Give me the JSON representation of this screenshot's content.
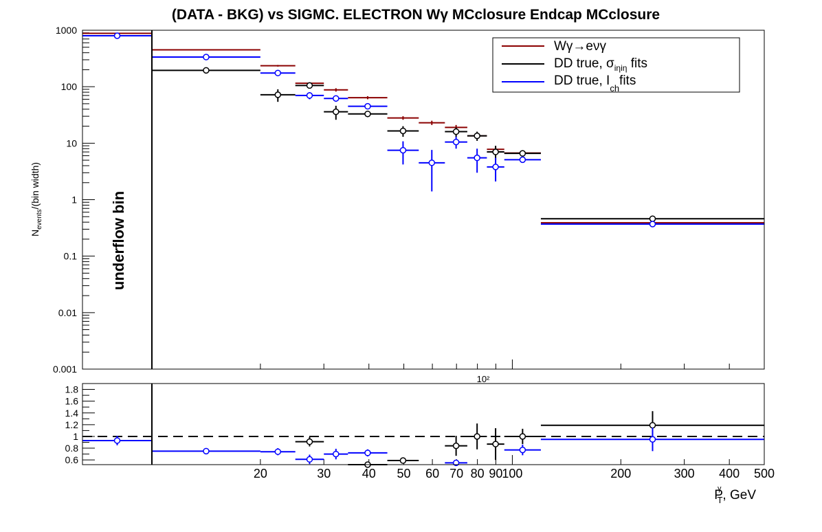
{
  "chart_data": {
    "type": "scatter",
    "title": "(DATA - BKG) vs SIGMC. ELECTRON Wγ MCclosure Endcap MCclosure",
    "upper_panel": {
      "ylabel": {
        "main": "N",
        "sub": "events",
        "rest": "/(bin width)"
      },
      "y_scale": "log",
      "ylim": [
        0.001,
        1000
      ],
      "y_tick_labels": [
        "0.001",
        "0.01",
        "0.1",
        "1",
        "10",
        "100",
        "1000"
      ],
      "x_axis_exponent_label": "10²",
      "underflow_label": "underflow bin"
    },
    "lower_panel": {
      "ylim": [
        0.52,
        1.9
      ],
      "y_tick_labels": [
        "0.6",
        "0.8",
        "1",
        "1.2",
        "1.4",
        "1.6",
        "1.8"
      ],
      "reference_line": 1.0
    },
    "x_scale": "log",
    "xlim": [
      10,
      500
    ],
    "xlabel": {
      "main": "P",
      "sub": "T",
      "sup": "γ",
      "rest": ", GeV"
    },
    "x_tick_labels": [
      {
        "v": 20,
        "t": "20"
      },
      {
        "v": 30,
        "t": "30"
      },
      {
        "v": 40,
        "t": "40"
      },
      {
        "v": 50,
        "t": "50"
      },
      {
        "v": 60,
        "t": "60"
      },
      {
        "v": 70,
        "t": "70"
      },
      {
        "v": 80,
        "t": "80"
      },
      {
        "v": 90,
        "t": "90"
      },
      {
        "v": 100,
        "t": "100"
      },
      {
        "v": 200,
        "t": "200"
      },
      {
        "v": 300,
        "t": "300"
      },
      {
        "v": 400,
        "t": "400"
      },
      {
        "v": 500,
        "t": "500"
      }
    ],
    "legend": {
      "placement": "top-right",
      "entries": [
        {
          "key": "mc",
          "text": "Wγ→eνγ"
        },
        {
          "key": "sieie",
          "text": "DD true, σ",
          "sub": "iηiη",
          "after": " fits"
        },
        {
          "key": "ich",
          "text": "DD true, I",
          "sub": "ch",
          "after": "fits"
        }
      ]
    },
    "series": [
      {
        "key": "mc",
        "name": "Wγ→eνγ",
        "color": "#8b0000",
        "marker": "none",
        "points": [
          {
            "x": [
              10,
              15
            ],
            "y": 880,
            "err": 15
          },
          {
            "x": [
              15,
              20
            ],
            "y": 450,
            "err": 12
          },
          {
            "x": [
              20,
              25
            ],
            "y": 235,
            "err": 8
          },
          {
            "x": [
              25,
              30
            ],
            "y": 115,
            "err": 5
          },
          {
            "x": [
              30,
              35
            ],
            "y": 88,
            "err": 6
          },
          {
            "x": [
              35,
              45
            ],
            "y": 64,
            "err": 4
          },
          {
            "x": [
              45,
              55
            ],
            "y": 28,
            "err": 2
          },
          {
            "x": [
              55,
              65
            ],
            "y": 23,
            "err": 2
          },
          {
            "x": [
              65,
              75
            ],
            "y": 19,
            "err": 2
          },
          {
            "x": [
              75,
              85
            ],
            "y": 13.5,
            "err": 1.5
          },
          {
            "x": [
              85,
              95
            ],
            "y": 7.8,
            "err": 0.8
          },
          {
            "x": [
              95,
              120
            ],
            "y": 6.7,
            "err": 0.6
          },
          {
            "x": [
              120,
              500
            ],
            "y": 0.39,
            "err": 0.02
          }
        ]
      },
      {
        "key": "sieie",
        "name": "DD true, σ iηiη fits",
        "color": "#000000",
        "marker": "circle",
        "points": [
          {
            "x": [
              15,
              20
            ],
            "y": 195,
            "err": 12
          },
          {
            "x": [
              20,
              25
            ],
            "y": 72,
            "err": 18
          },
          {
            "x": [
              25,
              30
            ],
            "y": 105,
            "err": 10
          },
          {
            "x": [
              30,
              35
            ],
            "y": 36,
            "err": 10
          },
          {
            "x": [
              35,
              45
            ],
            "y": 33,
            "err": 4
          },
          {
            "x": [
              45,
              55
            ],
            "y": 16.5,
            "err": 3.5
          },
          {
            "x": [
              65,
              75
            ],
            "y": 16,
            "err": 3
          },
          {
            "x": [
              75,
              85
            ],
            "y": 13.5,
            "err": 2.5
          },
          {
            "x": [
              85,
              95
            ],
            "y": 7,
            "err": 2
          },
          {
            "x": [
              95,
              120
            ],
            "y": 6.6,
            "err": 0.8
          },
          {
            "x": [
              120,
              500
            ],
            "y": 0.46,
            "err": 0.04
          }
        ]
      },
      {
        "key": "ich",
        "name": "DD true, I ch fits",
        "color": "#0000ff",
        "marker": "circle",
        "points": [
          {
            "x": [
              10,
              15
            ],
            "y": 800,
            "err": 30
          },
          {
            "x": [
              15,
              20
            ],
            "y": 335,
            "err": 15
          },
          {
            "x": [
              20,
              25
            ],
            "y": 175,
            "err": 12
          },
          {
            "x": [
              25,
              30
            ],
            "y": 70,
            "err": 10
          },
          {
            "x": [
              30,
              35
            ],
            "y": 62,
            "err": 8
          },
          {
            "x": [
              35,
              45
            ],
            "y": 45,
            "err": 5
          },
          {
            "x": [
              45,
              55
            ],
            "y": 7.5,
            "err": 3.3
          },
          {
            "x": [
              55,
              65
            ],
            "y": 4.5,
            "err": 3.1
          },
          {
            "x": [
              65,
              75
            ],
            "y": 10.5,
            "err": 2.5
          },
          {
            "x": [
              75,
              85
            ],
            "y": 5.5,
            "err": 2.5
          },
          {
            "x": [
              85,
              95
            ],
            "y": 3.8,
            "err": 1.7
          },
          {
            "x": [
              95,
              120
            ],
            "y": 5.1,
            "err": 0.5
          },
          {
            "x": [
              120,
              500
            ],
            "y": 0.37,
            "err": 0.03
          }
        ]
      }
    ],
    "ratio_series": [
      {
        "key": "sieie",
        "color": "#000000",
        "points": [
          {
            "x": [
              25,
              30
            ],
            "y": 0.91,
            "err": 0.08
          },
          {
            "x": [
              35,
              45
            ],
            "y": 0.52,
            "err": 0.05
          },
          {
            "x": [
              45,
              55
            ],
            "y": 0.59,
            "err": 0.05
          },
          {
            "x": [
              65,
              75
            ],
            "y": 0.84,
            "err": 0.17
          },
          {
            "x": [
              75,
              85
            ],
            "y": 1.0,
            "err": 0.22
          },
          {
            "x": [
              85,
              95
            ],
            "y": 0.87,
            "err": 0.27
          },
          {
            "x": [
              95,
              120
            ],
            "y": 1.0,
            "err": 0.13
          },
          {
            "x": [
              120,
              500
            ],
            "y": 1.19,
            "err": 0.24
          }
        ]
      },
      {
        "key": "ich",
        "color": "#0000ff",
        "points": [
          {
            "x": [
              10,
              15
            ],
            "y": 0.93,
            "err": 0.08
          },
          {
            "x": [
              15,
              20
            ],
            "y": 0.75,
            "err": 0.05
          },
          {
            "x": [
              20,
              25
            ],
            "y": 0.74,
            "err": 0.06
          },
          {
            "x": [
              25,
              30
            ],
            "y": 0.61,
            "err": 0.08
          },
          {
            "x": [
              30,
              35
            ],
            "y": 0.7,
            "err": 0.09
          },
          {
            "x": [
              35,
              45
            ],
            "y": 0.72,
            "err": 0.06
          },
          {
            "x": [
              65,
              75
            ],
            "y": 0.55,
            "err": 0.05
          },
          {
            "x": [
              95,
              120
            ],
            "y": 0.77,
            "err": 0.09
          },
          {
            "x": [
              120,
              500
            ],
            "y": 0.95,
            "err": 0.2
          }
        ]
      }
    ]
  }
}
